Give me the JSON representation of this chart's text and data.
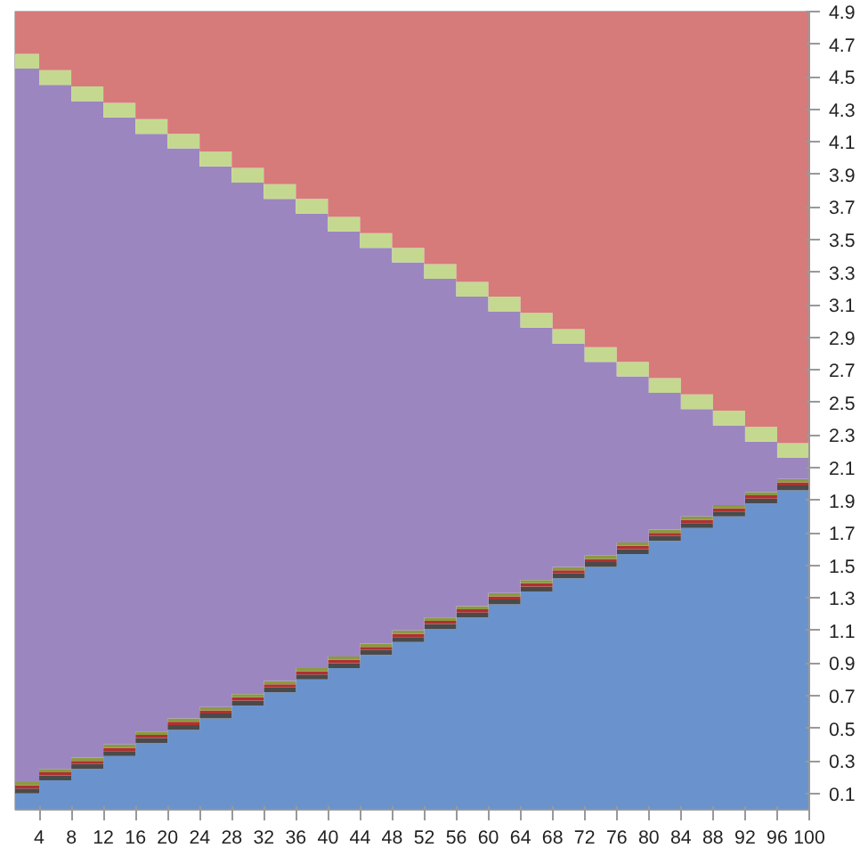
{
  "chart_data": {
    "type": "area",
    "stacked": true,
    "grid": false,
    "x": [
      1,
      4,
      4,
      8,
      8,
      12,
      12,
      16,
      16,
      20,
      20,
      24,
      24,
      28,
      28,
      32,
      32,
      36,
      36,
      40,
      40,
      44,
      44,
      48,
      48,
      52,
      52,
      56,
      56,
      60,
      60,
      64,
      64,
      68,
      68,
      72,
      72,
      76,
      76,
      80,
      80,
      84,
      84,
      88,
      88,
      92,
      92,
      96,
      96,
      100
    ],
    "xlim": [
      1,
      100
    ],
    "xticks": [
      4,
      8,
      12,
      16,
      20,
      24,
      28,
      32,
      36,
      40,
      44,
      48,
      52,
      56,
      60,
      64,
      68,
      72,
      76,
      80,
      84,
      88,
      92,
      96,
      100
    ],
    "ylim": [
      0,
      4.9
    ],
    "yticks": [
      0.1,
      0.3,
      0.5,
      0.7,
      0.9,
      1.1,
      1.3,
      1.5,
      1.7,
      1.9,
      2.1,
      2.3,
      2.5,
      2.7,
      2.9,
      3.1,
      3.3,
      3.5,
      3.7,
      3.9,
      4.1,
      4.3,
      4.5,
      4.7,
      4.9
    ],
    "series": [
      {
        "color": "#6a93cd",
        "values": [
          0.1,
          0.1,
          0.18,
          0.18,
          0.25,
          0.25,
          0.33,
          0.33,
          0.41,
          0.41,
          0.49,
          0.49,
          0.56,
          0.56,
          0.64,
          0.64,
          0.72,
          0.72,
          0.8,
          0.8,
          0.87,
          0.87,
          0.95,
          0.95,
          1.03,
          1.03,
          1.11,
          1.11,
          1.18,
          1.18,
          1.26,
          1.26,
          1.34,
          1.34,
          1.42,
          1.42,
          1.49,
          1.49,
          1.57,
          1.57,
          1.65,
          1.65,
          1.73,
          1.73,
          1.8,
          1.8,
          1.88,
          1.88,
          1.96,
          1.96
        ]
      },
      {
        "color": "#4a4a4a",
        "values": [
          0.03,
          0.03,
          0.03,
          0.03,
          0.03,
          0.03,
          0.03,
          0.03,
          0.03,
          0.03,
          0.03,
          0.03,
          0.03,
          0.03,
          0.03,
          0.03,
          0.03,
          0.03,
          0.03,
          0.03,
          0.03,
          0.03,
          0.03,
          0.03,
          0.03,
          0.03,
          0.03,
          0.03,
          0.03,
          0.03,
          0.03,
          0.03,
          0.03,
          0.03,
          0.03,
          0.03,
          0.03,
          0.03,
          0.03,
          0.03,
          0.03,
          0.03,
          0.03,
          0.03,
          0.03,
          0.03,
          0.03,
          0.03,
          0.03,
          0.03
        ]
      },
      {
        "color": "#b03030",
        "values": [
          0.02,
          0.02,
          0.02,
          0.02,
          0.02,
          0.02,
          0.02,
          0.02,
          0.02,
          0.02,
          0.02,
          0.02,
          0.02,
          0.02,
          0.02,
          0.02,
          0.02,
          0.02,
          0.02,
          0.02,
          0.02,
          0.02,
          0.02,
          0.02,
          0.02,
          0.02,
          0.02,
          0.02,
          0.02,
          0.02,
          0.02,
          0.02,
          0.02,
          0.02,
          0.02,
          0.02,
          0.02,
          0.02,
          0.02,
          0.02,
          0.02,
          0.02,
          0.02,
          0.02,
          0.02,
          0.02,
          0.02,
          0.02,
          0.02,
          0.02
        ]
      },
      {
        "color": "#8a9a40",
        "values": [
          0.02,
          0.02,
          0.02,
          0.02,
          0.02,
          0.02,
          0.02,
          0.02,
          0.02,
          0.02,
          0.02,
          0.02,
          0.02,
          0.02,
          0.02,
          0.02,
          0.02,
          0.02,
          0.02,
          0.02,
          0.02,
          0.02,
          0.02,
          0.02,
          0.02,
          0.02,
          0.02,
          0.02,
          0.02,
          0.02,
          0.02,
          0.02,
          0.02,
          0.02,
          0.02,
          0.02,
          0.02,
          0.02,
          0.02,
          0.02,
          0.02,
          0.02,
          0.02,
          0.02,
          0.02,
          0.02,
          0.02,
          0.02,
          0.02,
          0.02
        ]
      },
      {
        "color": "#9c86bf",
        "values": [
          4.38,
          4.38,
          4.2,
          4.2,
          4.03,
          4.03,
          3.85,
          3.85,
          3.67,
          3.67,
          3.5,
          3.5,
          3.32,
          3.32,
          3.14,
          3.14,
          2.96,
          2.96,
          2.79,
          2.79,
          2.61,
          2.61,
          2.43,
          2.43,
          2.26,
          2.26,
          2.08,
          2.08,
          1.9,
          1.9,
          1.73,
          1.73,
          1.55,
          1.55,
          1.37,
          1.37,
          1.19,
          1.19,
          1.02,
          1.02,
          0.84,
          0.84,
          0.66,
          0.66,
          0.49,
          0.49,
          0.31,
          0.31,
          0.13,
          0.13
        ]
      },
      {
        "color": "#c4d98f",
        "values": [
          0.09,
          0.09,
          0.09,
          0.09,
          0.09,
          0.09,
          0.09,
          0.09,
          0.09,
          0.09,
          0.09,
          0.09,
          0.09,
          0.09,
          0.09,
          0.09,
          0.09,
          0.09,
          0.09,
          0.09,
          0.09,
          0.09,
          0.09,
          0.09,
          0.09,
          0.09,
          0.09,
          0.09,
          0.09,
          0.09,
          0.09,
          0.09,
          0.09,
          0.09,
          0.09,
          0.09,
          0.09,
          0.09,
          0.09,
          0.09,
          0.09,
          0.09,
          0.09,
          0.09,
          0.09,
          0.09,
          0.09,
          0.09,
          0.09,
          0.09
        ]
      },
      {
        "color": "#d67a7a",
        "values": [
          0.26,
          0.26,
          0.36,
          0.36,
          0.46,
          0.46,
          0.56,
          0.56,
          0.66,
          0.66,
          0.76,
          0.76,
          0.86,
          0.86,
          0.96,
          0.96,
          1.06,
          1.06,
          1.16,
          1.16,
          1.26,
          1.26,
          1.36,
          1.36,
          1.46,
          1.46,
          1.56,
          1.56,
          1.66,
          1.66,
          1.76,
          1.76,
          1.86,
          1.86,
          1.96,
          1.96,
          2.06,
          2.06,
          2.16,
          2.16,
          2.26,
          2.26,
          2.36,
          2.36,
          2.46,
          2.46,
          2.56,
          2.56,
          2.66,
          2.66
        ]
      }
    ]
  }
}
